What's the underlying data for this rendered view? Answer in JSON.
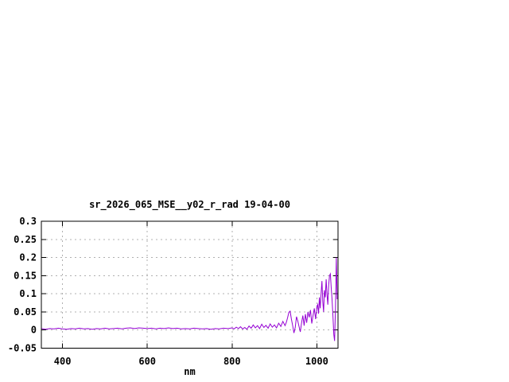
{
  "window": {
    "background": "#ffffff"
  },
  "chart_data": {
    "type": "line",
    "title": "sr_2026_065_MSE__y02_r_rad 19-04-00",
    "xlabel": "nm",
    "ylabel": "",
    "xlim": [
      350,
      1050
    ],
    "ylim": [
      -0.05,
      0.3
    ],
    "grid": true,
    "legend": "none",
    "x_ticks": {
      "values": [
        400,
        600,
        800,
        1000
      ],
      "labels": [
        "400",
        "600",
        "800",
        "1000"
      ]
    },
    "y_ticks": {
      "values": [
        0.3,
        0.25,
        0.2,
        0.15,
        0.1,
        0.05,
        0,
        -0.05
      ],
      "labels": [
        "0.3",
        "0.25",
        "0.2",
        "0.15",
        "0.1",
        "0.05",
        "0",
        "-0.05"
      ]
    },
    "colors": {
      "line": "#9400d3",
      "grid": "#b0b0b0",
      "border": "#000000",
      "text": "#000000"
    },
    "series": [
      {
        "name": "sr_2026_065_MSE__y02_r_rad",
        "points": [
          [
            350,
            0.004
          ],
          [
            360,
            0.002
          ],
          [
            370,
            0.004
          ],
          [
            380,
            0.003
          ],
          [
            390,
            0.005
          ],
          [
            400,
            0.003
          ],
          [
            410,
            0.002
          ],
          [
            420,
            0.004
          ],
          [
            430,
            0.003
          ],
          [
            440,
            0.005
          ],
          [
            450,
            0.003
          ],
          [
            460,
            0.004
          ],
          [
            470,
            0.002
          ],
          [
            480,
            0.004
          ],
          [
            490,
            0.003
          ],
          [
            500,
            0.005
          ],
          [
            510,
            0.003
          ],
          [
            520,
            0.004
          ],
          [
            530,
            0.005
          ],
          [
            540,
            0.003
          ],
          [
            550,
            0.005
          ],
          [
            560,
            0.006
          ],
          [
            570,
            0.004
          ],
          [
            580,
            0.006
          ],
          [
            590,
            0.005
          ],
          [
            600,
            0.004
          ],
          [
            610,
            0.005
          ],
          [
            620,
            0.003
          ],
          [
            630,
            0.005
          ],
          [
            640,
            0.004
          ],
          [
            650,
            0.006
          ],
          [
            660,
            0.004
          ],
          [
            670,
            0.005
          ],
          [
            680,
            0.003
          ],
          [
            690,
            0.004
          ],
          [
            700,
            0.003
          ],
          [
            710,
            0.005
          ],
          [
            720,
            0.004
          ],
          [
            730,
            0.003
          ],
          [
            740,
            0.004
          ],
          [
            750,
            0.002
          ],
          [
            760,
            0.004
          ],
          [
            770,
            0.003
          ],
          [
            780,
            0.005
          ],
          [
            790,
            0.004
          ],
          [
            800,
            0.006
          ],
          [
            805,
            0.003
          ],
          [
            810,
            0.008
          ],
          [
            815,
            0.004
          ],
          [
            820,
            0.009
          ],
          [
            825,
            0.003
          ],
          [
            830,
            0.007
          ],
          [
            835,
            0.002
          ],
          [
            840,
            0.011
          ],
          [
            845,
            0.005
          ],
          [
            850,
            0.014
          ],
          [
            855,
            0.006
          ],
          [
            860,
            0.012
          ],
          [
            865,
            0.004
          ],
          [
            870,
            0.016
          ],
          [
            875,
            0.007
          ],
          [
            880,
            0.013
          ],
          [
            885,
            0.005
          ],
          [
            890,
            0.017
          ],
          [
            895,
            0.008
          ],
          [
            900,
            0.014
          ],
          [
            905,
            0.006
          ],
          [
            910,
            0.019
          ],
          [
            915,
            0.01
          ],
          [
            920,
            0.024
          ],
          [
            925,
            0.012
          ],
          [
            928,
            0.021
          ],
          [
            931,
            0.034
          ],
          [
            934,
            0.049
          ],
          [
            937,
            0.052
          ],
          [
            940,
            0.03
          ],
          [
            943,
            0.012
          ],
          [
            946,
            -0.008
          ],
          [
            949,
            0.007
          ],
          [
            952,
            0.037
          ],
          [
            955,
            0.025
          ],
          [
            958,
            0.01
          ],
          [
            961,
            -0.005
          ],
          [
            964,
            0.02
          ],
          [
            967,
            0.04
          ],
          [
            970,
            0.012
          ],
          [
            973,
            0.044
          ],
          [
            976,
            0.02
          ],
          [
            979,
            0.05
          ],
          [
            982,
            0.035
          ],
          [
            985,
            0.055
          ],
          [
            988,
            0.018
          ],
          [
            991,
            0.04
          ],
          [
            994,
            0.06
          ],
          [
            997,
            0.03
          ],
          [
            1000,
            0.065
          ],
          [
            1002,
            0.07
          ],
          [
            1004,
            0.045
          ],
          [
            1006,
            0.09
          ],
          [
            1008,
            0.06
          ],
          [
            1010,
            0.1
          ],
          [
            1012,
            0.135
          ],
          [
            1014,
            0.08
          ],
          [
            1016,
            0.05
          ],
          [
            1018,
            0.11
          ],
          [
            1020,
            0.09
          ],
          [
            1022,
            0.14
          ],
          [
            1024,
            0.1
          ],
          [
            1026,
            0.07
          ],
          [
            1028,
            0.125
          ],
          [
            1030,
            0.15
          ],
          [
            1032,
            0.155
          ],
          [
            1034,
            0.115
          ],
          [
            1036,
            0.085
          ],
          [
            1038,
            0.04
          ],
          [
            1040,
            -0.012
          ],
          [
            1042,
            -0.03
          ],
          [
            1044,
            0.06
          ],
          [
            1046,
            0.2
          ],
          [
            1048,
            0.085
          ]
        ]
      }
    ]
  }
}
